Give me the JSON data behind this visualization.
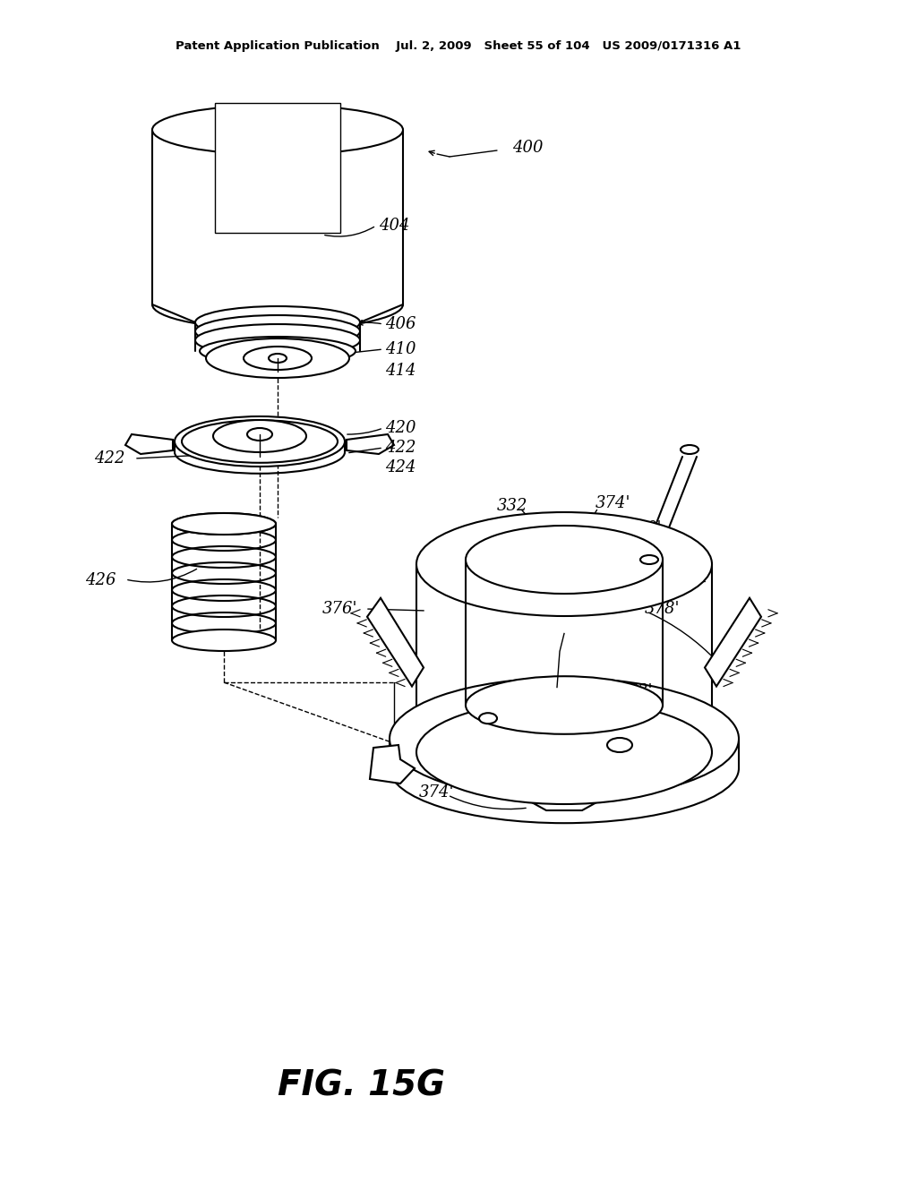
{
  "title": "Patent Application Publication    Jul. 2, 2009   Sheet 55 of 104   US 2009/0171316 A1",
  "fig_label": "FIG. 15G",
  "bg": "#ffffff",
  "lc": "#000000"
}
